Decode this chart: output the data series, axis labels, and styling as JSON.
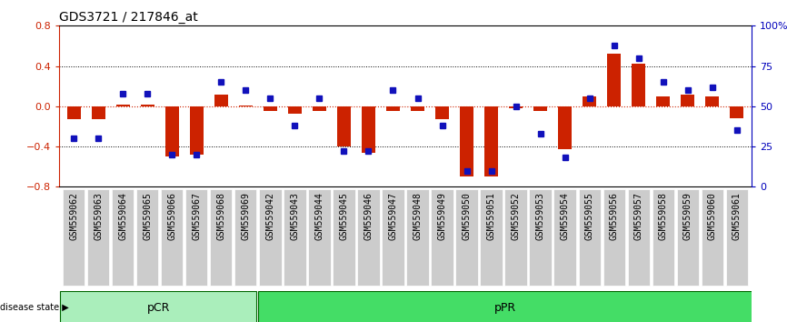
{
  "title": "GDS3721 / 217846_at",
  "samples": [
    "GSM559062",
    "GSM559063",
    "GSM559064",
    "GSM559065",
    "GSM559066",
    "GSM559067",
    "GSM559068",
    "GSM559069",
    "GSM559042",
    "GSM559043",
    "GSM559044",
    "GSM559045",
    "GSM559046",
    "GSM559047",
    "GSM559048",
    "GSM559049",
    "GSM559050",
    "GSM559051",
    "GSM559052",
    "GSM559053",
    "GSM559054",
    "GSM559055",
    "GSM559056",
    "GSM559057",
    "GSM559058",
    "GSM559059",
    "GSM559060",
    "GSM559061"
  ],
  "bar_values": [
    -0.13,
    -0.13,
    0.02,
    0.02,
    -0.5,
    -0.48,
    0.12,
    0.01,
    -0.05,
    -0.07,
    -0.05,
    -0.4,
    -0.46,
    -0.05,
    -0.05,
    -0.13,
    -0.7,
    -0.7,
    -0.02,
    -0.05,
    -0.43,
    0.1,
    0.52,
    0.42,
    0.1,
    0.12,
    0.1,
    -0.12
  ],
  "dot_values": [
    30,
    30,
    58,
    58,
    20,
    20,
    65,
    60,
    55,
    38,
    55,
    22,
    22,
    60,
    55,
    38,
    10,
    10,
    50,
    33,
    18,
    55,
    88,
    80,
    65,
    60,
    62,
    35
  ],
  "pcr_count": 8,
  "group_labels": [
    "pCR",
    "pPR"
  ],
  "ylim": [
    -0.8,
    0.8
  ],
  "y2lim": [
    0,
    100
  ],
  "yticks_left": [
    -0.8,
    -0.4,
    0.0,
    0.4,
    0.8
  ],
  "yticks_right": [
    0,
    25,
    50,
    75,
    100
  ],
  "ytick_labels_right": [
    "0",
    "25",
    "50",
    "75",
    "100%"
  ],
  "bar_color": "#CC2200",
  "dot_color": "#1111BB",
  "label_fontsize": 7,
  "title_fontsize": 10,
  "tick_color_left": "#CC2200",
  "tick_color_right": "#0000BB",
  "pcr_color": "#AAEEBB",
  "ppr_color": "#44DD66"
}
